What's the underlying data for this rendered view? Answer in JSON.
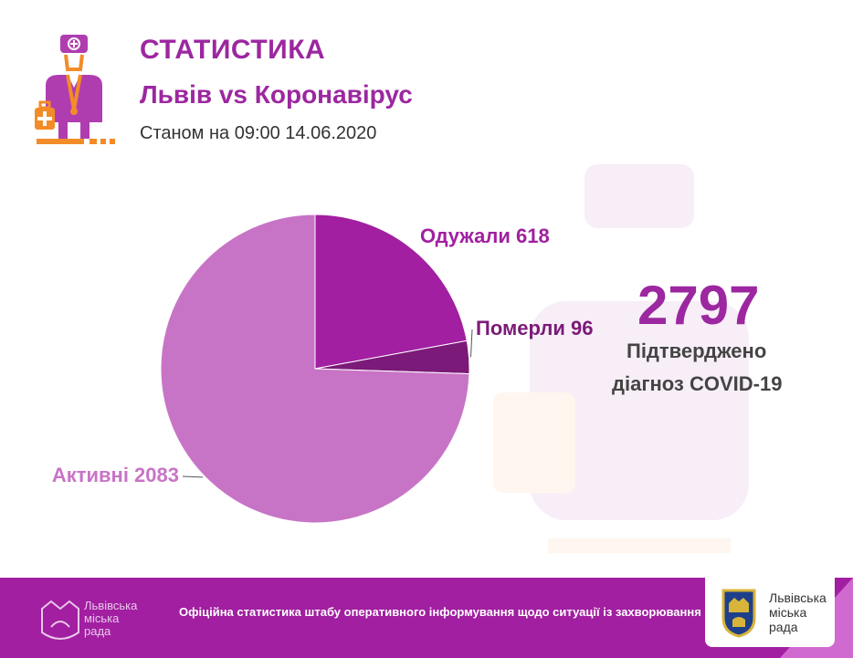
{
  "header": {
    "title": "СТАТИСТИКА",
    "subtitle": "Львів vs Коронавірус",
    "date_line": "Станом на 09:00 14.06.2020"
  },
  "summary": {
    "total": "2797",
    "caption_line1": "Підтверджено",
    "caption_line2": "діагноз COVID-19"
  },
  "chart_data": {
    "type": "pie",
    "slices": [
      {
        "label": "Одужали 618",
        "value": 618,
        "color": "#a11fa0"
      },
      {
        "label": "Померли 96",
        "value": 96,
        "color": "#7b1a78"
      },
      {
        "label": "Активні 2083",
        "value": 2083,
        "color": "#c874c6"
      }
    ],
    "legend": "none"
  },
  "footer": {
    "left_logo_lines": [
      "Львівська",
      "міська",
      "рада"
    ],
    "text": "Офіційна статистика штабу оперативного інформування щодо ситуації із захворювання на коронавірус у Львові.",
    "right_logo_lines": [
      "Львівська",
      "міська",
      "рада"
    ]
  },
  "icons": {
    "doctor": "doctor-icon",
    "coat_of_arms": "coat-of-arms-icon"
  },
  "colors": {
    "brand": "#9c27a0",
    "recovered": "#a11fa0",
    "deaths": "#7b1a78",
    "active": "#c874c6",
    "active_label": "#c874c6",
    "footer_bg": "#a11fa0"
  }
}
